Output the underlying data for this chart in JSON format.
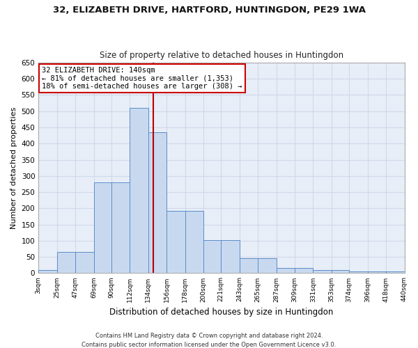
{
  "title": "32, ELIZABETH DRIVE, HARTFORD, HUNTINGDON, PE29 1WA",
  "subtitle": "Size of property relative to detached houses in Huntingdon",
  "xlabel": "Distribution of detached houses by size in Huntingdon",
  "ylabel": "Number of detached properties",
  "bar_color": "#c8d9ef",
  "bar_edge_color": "#5b8cc8",
  "plot_bg_color": "#e8eef8",
  "fig_bg_color": "#ffffff",
  "grid_color": "#d0d8e8",
  "annotation_text": "32 ELIZABETH DRIVE: 140sqm\n← 81% of detached houses are smaller (1,353)\n18% of semi-detached houses are larger (308) →",
  "vline_x": 140,
  "vline_color": "#bb0000",
  "bins": [
    3,
    25,
    47,
    69,
    90,
    112,
    134,
    156,
    178,
    200,
    221,
    243,
    265,
    287,
    309,
    331,
    353,
    374,
    396,
    418,
    440
  ],
  "heights": [
    10,
    65,
    65,
    280,
    280,
    510,
    435,
    192,
    192,
    102,
    102,
    46,
    46,
    17,
    17,
    10,
    10,
    6,
    6,
    5,
    5
  ],
  "tick_labels": [
    "3sqm",
    "25sqm",
    "47sqm",
    "69sqm",
    "90sqm",
    "112sqm",
    "134sqm",
    "156sqm",
    "178sqm",
    "200sqm",
    "221sqm",
    "243sqm",
    "265sqm",
    "287sqm",
    "309sqm",
    "331sqm",
    "353sqm",
    "374sqm",
    "396sqm",
    "418sqm",
    "440sqm"
  ],
  "ylim": [
    0,
    650
  ],
  "yticks": [
    0,
    50,
    100,
    150,
    200,
    250,
    300,
    350,
    400,
    450,
    500,
    550,
    600,
    650
  ],
  "footnote1": "Contains HM Land Registry data © Crown copyright and database right 2024.",
  "footnote2": "Contains public sector information licensed under the Open Government Licence v3.0."
}
